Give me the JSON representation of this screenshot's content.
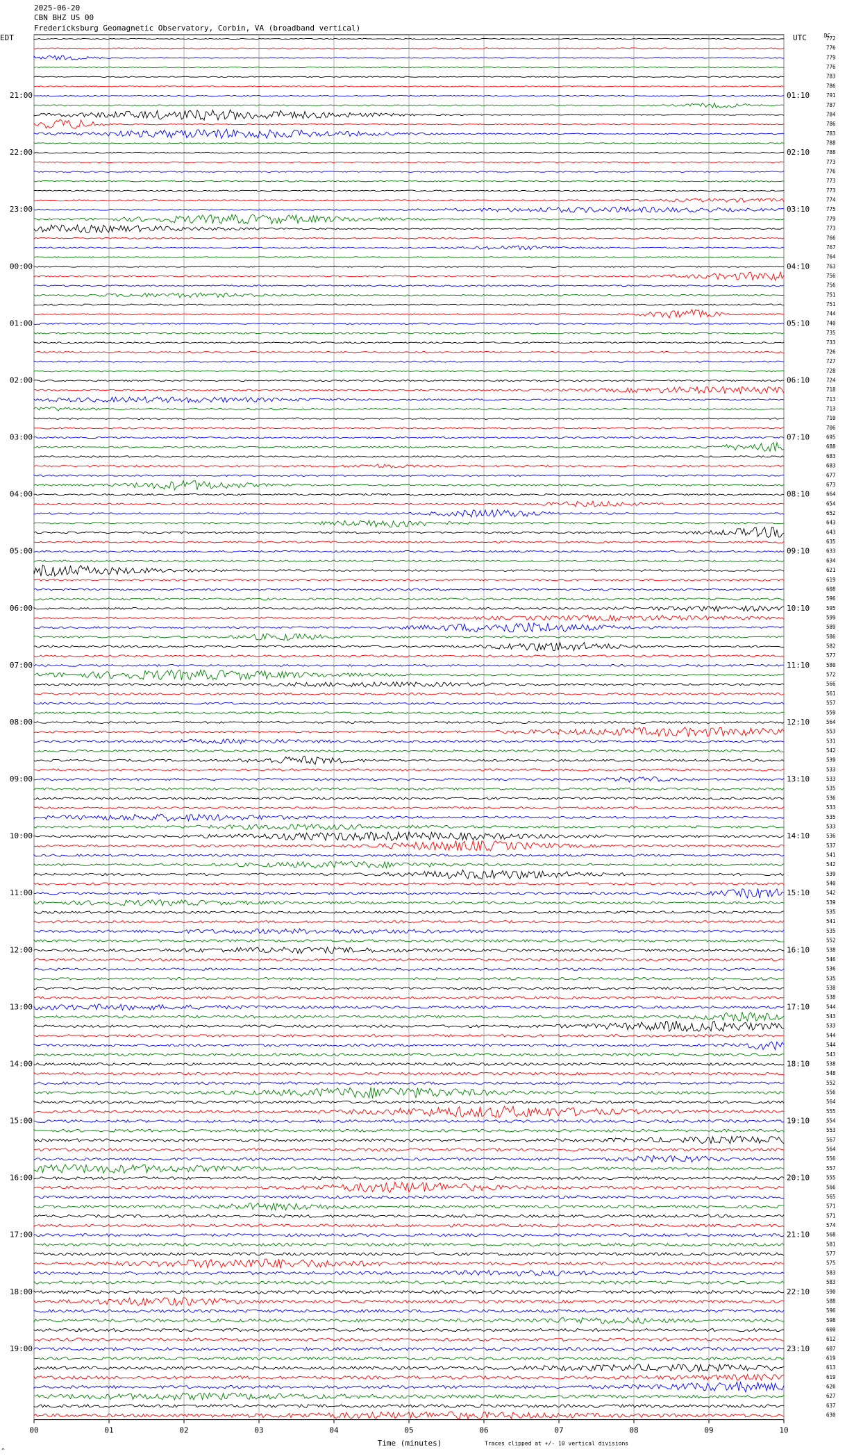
{
  "chart_data": {
    "type": "helicorder",
    "date": "2025-06-20",
    "station": "CBN BHZ US 00",
    "title": "Fredericksburg Geomagnetic Observatory, Corbin, VA (broadband vertical)",
    "left_zone": "EDT",
    "right_zone": "UTC",
    "dc_header": "DC",
    "x_label": "Time (minutes)",
    "note": "Traces clipped at +/- 10 vertical divisions",
    "corner_mark": "^",
    "xlim": [
      0,
      10
    ],
    "xticks": [
      {
        "value": 0,
        "label": "00"
      },
      {
        "value": 1,
        "label": "01"
      },
      {
        "value": 2,
        "label": "02"
      },
      {
        "value": 3,
        "label": "03"
      },
      {
        "value": 4,
        "label": "04"
      },
      {
        "value": 5,
        "label": "05"
      },
      {
        "value": 6,
        "label": "06"
      },
      {
        "value": 7,
        "label": "07"
      },
      {
        "value": 8,
        "label": "08"
      },
      {
        "value": 9,
        "label": "09"
      },
      {
        "value": 10,
        "label": "10"
      }
    ],
    "grid": true,
    "trace_colors": [
      "#000000",
      "#ff0000",
      "#0000ff",
      "#008000"
    ],
    "left_hours": [
      "21:00",
      "22:00",
      "23:00",
      "00:00",
      "01:00",
      "02:00",
      "03:00",
      "04:00",
      "05:00",
      "06:00",
      "07:00",
      "08:00",
      "09:00",
      "10:00",
      "11:00",
      "12:00",
      "13:00",
      "14:00",
      "15:00",
      "16:00",
      "17:00",
      "18:00",
      "19:00"
    ],
    "right_hours": [
      "01:10",
      "02:10",
      "03:10",
      "04:10",
      "05:10",
      "06:10",
      "07:10",
      "08:10",
      "09:10",
      "10:10",
      "11:10",
      "12:10",
      "13:10",
      "14:10",
      "15:10",
      "16:10",
      "17:10",
      "18:10",
      "19:10",
      "20:10",
      "21:10",
      "22:10",
      "23:10"
    ],
    "dc_offsets": [
      772,
      776,
      779,
      776,
      783,
      786,
      791,
      787,
      784,
      786,
      783,
      788,
      788,
      773,
      776,
      773,
      773,
      774,
      775,
      779,
      773,
      766,
      767,
      764,
      763,
      756,
      756,
      751,
      751,
      744,
      740,
      735,
      733,
      726,
      727,
      728,
      724,
      718,
      713,
      713,
      710,
      706,
      695,
      688,
      683,
      683,
      677,
      673,
      664,
      654,
      652,
      643,
      643,
      635,
      633,
      634,
      621,
      619,
      608,
      596,
      595,
      599,
      589,
      586,
      582,
      577,
      580,
      572,
      566,
      561,
      557,
      559,
      564,
      553,
      531,
      542,
      539,
      533,
      533,
      535,
      536,
      533,
      535,
      533,
      536,
      537,
      541,
      542,
      539,
      540,
      542,
      539,
      535,
      541,
      535,
      552,
      538,
      546,
      536,
      535,
      538,
      538,
      544,
      543,
      533,
      544,
      544,
      543,
      538,
      548,
      552,
      556,
      564,
      555,
      554,
      553,
      567,
      564,
      556,
      557,
      555,
      566,
      565,
      571,
      571,
      574,
      568,
      581,
      577,
      575,
      583,
      583,
      590,
      588,
      596,
      598,
      600,
      612,
      607,
      619,
      613,
      619,
      626,
      627,
      637,
      630
    ]
  }
}
